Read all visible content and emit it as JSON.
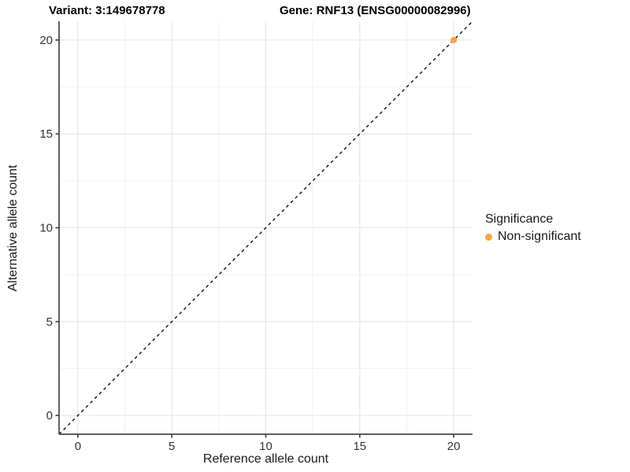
{
  "figure": {
    "title_left": "Variant: 3:149678778",
    "title_right": "Gene: RNF13 (ENSG00000082996)"
  },
  "chart_data": {
    "type": "scatter",
    "title_left": "Variant: 3:149678778",
    "title_right": "Gene: RNF13 (ENSG00000082996)",
    "variant": "3:149678778",
    "gene_symbol": "RNF13",
    "gene_id": "ENSG00000082996",
    "xlabel": "Reference allele count",
    "ylabel": "Alternative allele count",
    "xlim": [
      -1,
      21
    ],
    "ylim": [
      -1,
      21
    ],
    "x_ticks": [
      0,
      5,
      10,
      15,
      20
    ],
    "y_ticks": [
      0,
      5,
      10,
      15,
      20
    ],
    "x_minor_ticks": [
      2.5,
      7.5,
      12.5,
      17.5
    ],
    "y_minor_ticks": [
      2.5,
      7.5,
      12.5,
      17.5
    ],
    "grid": true,
    "reference_line": {
      "slope": 1,
      "intercept": 0,
      "style": "dashed",
      "color": "#111111"
    },
    "series": [
      {
        "name": "Non-significant",
        "color": "#FFA33C",
        "points": [
          [
            20,
            20
          ]
        ]
      }
    ],
    "legend": {
      "title": "Significance",
      "position": "right",
      "items": [
        {
          "label": "Non-significant",
          "color": "#FFA33C"
        }
      ]
    },
    "colors": {
      "background": "#FFFFFF",
      "grid_major": "#E4E4E4",
      "grid_minor": "#F0F0F0",
      "axis_line": "#464646",
      "tick_label": "#333333",
      "point": "#FFA33C"
    }
  }
}
